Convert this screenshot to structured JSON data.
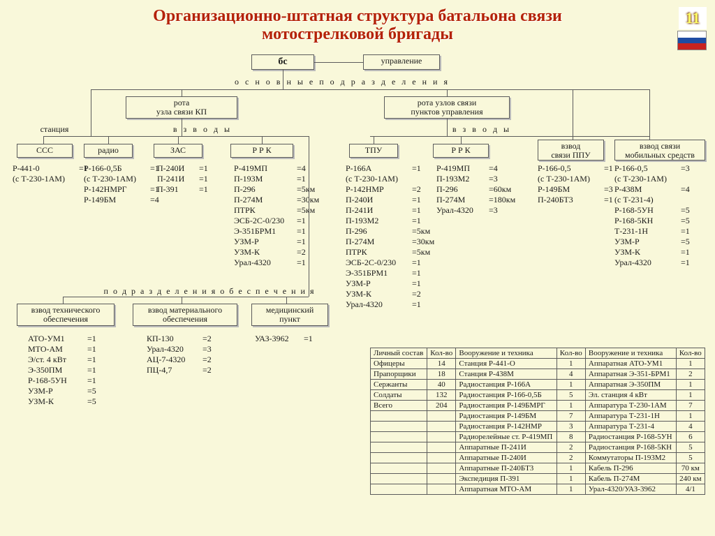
{
  "meta": {
    "slide_number": "11"
  },
  "title": {
    "line1": "Организационно-штатная структура батальона связи",
    "line2": "мотострелковой бригады"
  },
  "top": {
    "bs": "бс",
    "upr": "управление"
  },
  "section_labels": {
    "main": "о с н о в н ы е   п о д р а з д е л е н и я",
    "vzvody_l": "в з в о д ы",
    "vzvody_r": "в з в о д ы",
    "support": "п о д р а з д е л е н и я о б е с п е ч е н и я",
    "stanciya": "станция"
  },
  "mid": {
    "rota_kp": "рота\nузла связи КП",
    "rota_pu": "рота узлов связи\nпунктов управления"
  },
  "cols": {
    "sss": {
      "title": "ССС"
    },
    "radio": {
      "title": "радио"
    },
    "zas": {
      "title": "ЗАС"
    },
    "rrk_l": {
      "title": "Р Р К"
    },
    "tpu": {
      "title": "ТПУ"
    },
    "rrk_r": {
      "title": "Р Р К"
    },
    "ppu": {
      "title": "взвод\nсвязи ППУ"
    },
    "mob": {
      "title": "взвод связи\nмобильных средств"
    }
  },
  "support_boxes": {
    "tech": "взвод технического\nобеспечения",
    "mat": "взвод материального\nобеспечения",
    "med": "медицинский\nпункт"
  },
  "data": {
    "sss": [
      [
        "Р-441-0",
        "=1"
      ],
      [
        "(с Т-230-1АМ)",
        ""
      ]
    ],
    "radio": [
      [
        "Р-166-0,5Б",
        "=1"
      ],
      [
        "(с Т-230-1АМ)",
        ""
      ],
      [
        "Р-142НМРГ",
        "=1"
      ],
      [
        "Р-149БМ",
        "=4"
      ]
    ],
    "zas": [
      [
        "П-240И",
        "=1"
      ],
      [
        "П-241И",
        "=1"
      ],
      [
        "П-391",
        "=1"
      ]
    ],
    "rrk_l": [
      [
        "Р-419МП",
        "=4"
      ],
      [
        "П-193М",
        "=1"
      ],
      [
        "П-296",
        "=5км"
      ],
      [
        "П-274М",
        "=30км"
      ],
      [
        "ПТРК",
        "=5км"
      ],
      [
        "ЭСБ-2С-0/230",
        "=1"
      ],
      [
        "Э-351БРМ1",
        "=1"
      ],
      [
        "УЗМ-Р",
        "=1"
      ],
      [
        "УЗМ-К",
        "=2"
      ],
      [
        "Урал-4320",
        "=1"
      ]
    ],
    "tpu": [
      [
        "Р-166А",
        "=1"
      ],
      [
        "(с Т-230-1АМ)",
        ""
      ],
      [
        "Р-142НМР",
        "=2"
      ],
      [
        "П-240И",
        "=1"
      ],
      [
        "П-241И",
        "=1"
      ],
      [
        "П-193М2",
        "=1"
      ],
      [
        "П-296",
        "=5км"
      ],
      [
        "П-274М",
        "=30км"
      ],
      [
        "ПТРК",
        "=5км"
      ],
      [
        "ЭСБ-2С-0/230",
        "=1"
      ],
      [
        "Э-351БРМ1",
        "=1"
      ],
      [
        "УЗМ-Р",
        "=1"
      ],
      [
        "УЗМ-К",
        "=2"
      ],
      [
        "Урал-4320",
        "=1"
      ]
    ],
    "rrk_r": [
      [
        "Р-419МП",
        "=4"
      ],
      [
        "П-193М2",
        "=3"
      ],
      [
        "П-296",
        "=60км"
      ],
      [
        "П-274М",
        "=180км"
      ],
      [
        "Урал-4320",
        "=3"
      ]
    ],
    "ppu": [
      [
        "Р-166-0,5",
        "=1"
      ],
      [
        "(с Т-230-1АМ)",
        ""
      ],
      [
        "Р-149БМ",
        "=3"
      ],
      [
        "П-240БТ3",
        "=1"
      ]
    ],
    "mob": [
      [
        "Р-166-0,5",
        "=3"
      ],
      [
        "(с Т-230-1АМ)",
        ""
      ],
      [
        "Р-438М",
        "=4"
      ],
      [
        "(с Т-231-4)",
        ""
      ],
      [
        "Р-168-5УН",
        "=5"
      ],
      [
        "Р-168-5КН",
        "=5"
      ],
      [
        "Т-231-1Н",
        "=1"
      ],
      [
        "УЗМ-Р",
        "=5"
      ],
      [
        "УЗМ-К",
        "=1"
      ],
      [
        "Урал-4320",
        "=1"
      ]
    ],
    "tech": [
      [
        "АТО-УМ1",
        "=1"
      ],
      [
        "МТО-АМ",
        "=1"
      ],
      [
        "Э/ст. 4 кВт",
        "=1"
      ],
      [
        "Э-350ПМ",
        "=1"
      ],
      [
        "Р-168-5УН",
        "=1"
      ],
      [
        "УЗМ-Р",
        "=5"
      ],
      [
        "УЗМ-К",
        "=5"
      ]
    ],
    "mat": [
      [
        "КП-130",
        "=2"
      ],
      [
        "Урал-4320",
        "=3"
      ],
      [
        "АЦ-7-4320",
        "=2"
      ],
      [
        "ПЦ-4,7",
        "=2"
      ]
    ],
    "med": [
      [
        "УАЗ-3962",
        "=1"
      ]
    ]
  },
  "table": {
    "headers": [
      "Личный состав",
      "Кол-во",
      "Вооружение и техника",
      "Кол-во",
      "Вооружение и техника",
      "Кол-во"
    ],
    "rows": [
      [
        "Офицеры",
        "14",
        "Станция Р-441-О",
        "1",
        "Аппаратная АТО-УМ1",
        "1"
      ],
      [
        "Прапорщики",
        "18",
        "Станция Р-438М",
        "4",
        "Аппаратная Э-351-БРМ1",
        "2"
      ],
      [
        "Сержанты",
        "40",
        "Радиостанция Р-166А",
        "1",
        "Аппаратная Э-350ПМ",
        "1"
      ],
      [
        "Солдаты",
        "132",
        "Радиостанция Р-166-0,5Б",
        "5",
        "Эл. станция 4 кВт",
        "1"
      ],
      [
        "Всего",
        "204",
        "Радиостанция Р-149БМРГ",
        "1",
        "Аппаратура Т-230-1АМ",
        "7"
      ],
      [
        "",
        "",
        "Радиостанция Р-149БМ",
        "7",
        "Аппаратура Т-231-1Н",
        "1"
      ],
      [
        "",
        "",
        "Радиостанция Р-142НМР",
        "3",
        "Аппаратура Т-231-4",
        "4"
      ],
      [
        "",
        "",
        "Радиорелейные ст. Р-419МП",
        "8",
        "Радиостанция Р-168-5УН",
        "6"
      ],
      [
        "",
        "",
        "Аппаратные П-241И",
        "2",
        "Радиостанция Р-168-5КН",
        "5"
      ],
      [
        "",
        "",
        "Аппаратные П-240И",
        "2",
        "Коммутаторы П-193М2",
        "5"
      ],
      [
        "",
        "",
        "Аппаратные П-240БТ3",
        "1",
        "Кабель П-296",
        "70 км"
      ],
      [
        "",
        "",
        "Экспедиция П-391",
        "1",
        "Кабель П-274М",
        "240 км"
      ],
      [
        "",
        "",
        "Аппаратная МТО-АМ",
        "1",
        "Урал-4320/УАЗ-3962",
        "4/1"
      ]
    ]
  },
  "style": {
    "k_widths": {
      "sss": 95,
      "radio": 95,
      "zas": 60,
      "rrk_l": 90,
      "tpu": 95,
      "rrk_r": 75,
      "ppu": 95,
      "mob": 95,
      "tech": 85,
      "mat": 80,
      "med": 70
    }
  }
}
